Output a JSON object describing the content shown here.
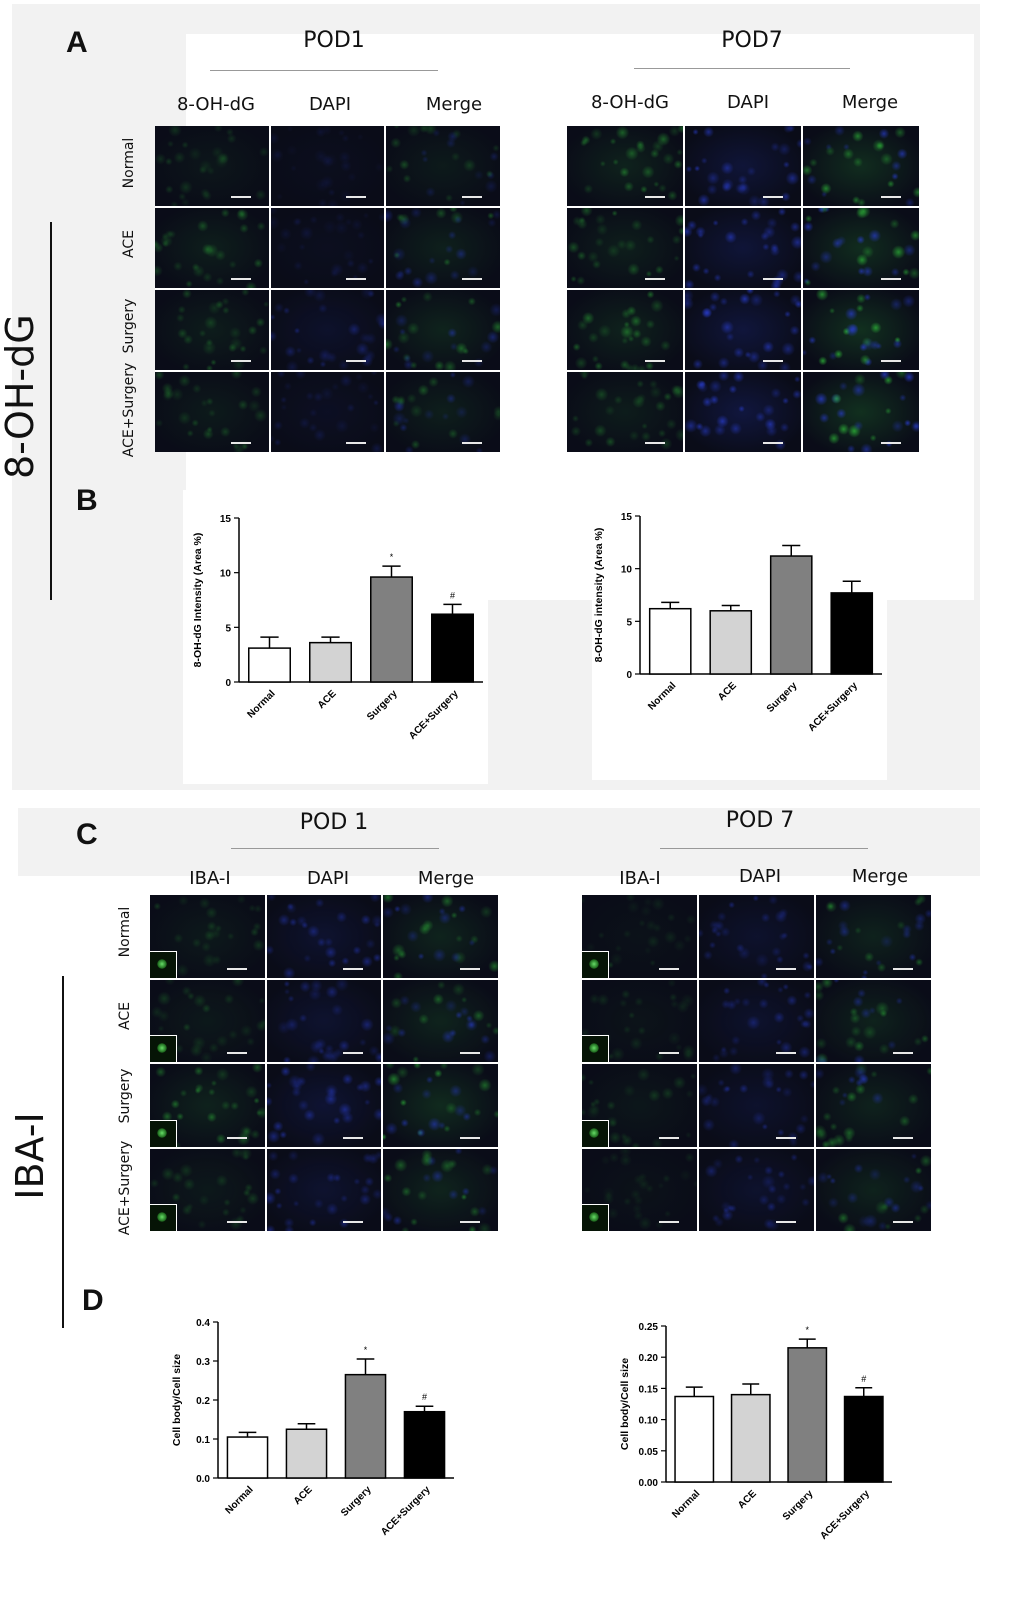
{
  "figure": {
    "section_a": {
      "letter": "A",
      "side_label": "8-OH-dG",
      "groups": [
        {
          "title": "POD1",
          "columns": [
            "8-OH-dG",
            "DAPI",
            "Merge"
          ],
          "rows": [
            "Normal",
            "ACE",
            "Surgery",
            "ACE+Surgery"
          ],
          "intensity": [
            [
              0.25,
              0.15,
              0.35
            ],
            [
              0.45,
              0.2,
              0.5
            ],
            [
              0.4,
              0.45,
              0.6
            ],
            [
              0.35,
              0.25,
              0.45
            ]
          ]
        },
        {
          "title": "POD7",
          "columns": [
            "8-OH-dG",
            "DAPI",
            "Merge"
          ],
          "rows": [
            "Normal",
            "ACE",
            "Surgery",
            "ACE+Surgery"
          ],
          "intensity": [
            [
              0.55,
              0.75,
              0.8
            ],
            [
              0.45,
              0.75,
              0.8
            ],
            [
              0.55,
              0.85,
              0.9
            ],
            [
              0.4,
              0.9,
              0.9
            ]
          ]
        }
      ]
    },
    "section_b": {
      "letter": "B"
    },
    "section_c": {
      "letter": "C",
      "side_label": "IBA-I",
      "groups": [
        {
          "title": "POD 1",
          "columns": [
            "IBA-I",
            "DAPI",
            "Merge"
          ],
          "rows": [
            "Normal",
            "ACE",
            "Surgery",
            "ACE+Surgery"
          ],
          "intensity": [
            [
              0.3,
              0.55,
              0.6
            ],
            [
              0.3,
              0.55,
              0.6
            ],
            [
              0.55,
              0.65,
              0.75
            ],
            [
              0.3,
              0.55,
              0.6
            ]
          ]
        },
        {
          "title": "POD 7",
          "columns": [
            "IBA-I",
            "DAPI",
            "Merge"
          ],
          "rows": [
            "",
            "",
            "",
            ""
          ],
          "intensity": [
            [
              0.15,
              0.5,
              0.55
            ],
            [
              0.2,
              0.5,
              0.55
            ],
            [
              0.25,
              0.5,
              0.55
            ],
            [
              0.15,
              0.5,
              0.55
            ]
          ]
        }
      ]
    },
    "section_d": {
      "letter": "D"
    },
    "colors": {
      "green": "#2fbf3a",
      "blue": "#2a3fd6",
      "background": "#0a0c18"
    }
  },
  "chart_data": [
    {
      "type": "bar",
      "ylabel": "8-OH-dG Intensity (Area %)",
      "categories": [
        "Normal",
        "ACE",
        "Surgery",
        "ACE+Surgery"
      ],
      "values": [
        3.1,
        3.6,
        9.6,
        6.2
      ],
      "errors": [
        1.0,
        0.5,
        1.0,
        0.9
      ],
      "annotations": [
        "",
        "",
        "*",
        "#"
      ],
      "ylim": [
        0,
        15
      ],
      "yticks": [
        "0",
        "5",
        "10",
        "15"
      ],
      "colors": [
        "#ffffff",
        "#d3d3d3",
        "#808080",
        "#000000"
      ]
    },
    {
      "type": "bar",
      "ylabel": "8-OH-dG intensity (Area %)",
      "categories": [
        "Normal",
        "ACE",
        "Surgery",
        "ACE+Surgery"
      ],
      "values": [
        6.2,
        6.0,
        11.2,
        7.7
      ],
      "errors": [
        0.6,
        0.5,
        1.0,
        1.1
      ],
      "annotations": [
        "",
        "",
        "",
        ""
      ],
      "ylim": [
        0,
        15
      ],
      "yticks": [
        "0",
        "5",
        "10",
        "15"
      ],
      "colors": [
        "#ffffff",
        "#d3d3d3",
        "#808080",
        "#000000"
      ]
    },
    {
      "type": "bar",
      "ylabel": "Cell body/Cell size",
      "categories": [
        "Normal",
        "ACE",
        "Surgery",
        "ACE+Surgery"
      ],
      "values": [
        0.105,
        0.125,
        0.265,
        0.17
      ],
      "errors": [
        0.012,
        0.014,
        0.04,
        0.014
      ],
      "annotations": [
        "",
        "",
        "*",
        "#"
      ],
      "ylim": [
        0,
        0.4
      ],
      "yticks": [
        "0.0",
        "0.1",
        "0.2",
        "0.3",
        "0.4"
      ],
      "colors": [
        "#ffffff",
        "#d3d3d3",
        "#808080",
        "#000000"
      ]
    },
    {
      "type": "bar",
      "ylabel": "Cell body/Cell size",
      "categories": [
        "Normal",
        "ACE",
        "Surgery",
        "ACE+Surgery"
      ],
      "values": [
        0.137,
        0.14,
        0.215,
        0.137
      ],
      "errors": [
        0.015,
        0.017,
        0.014,
        0.014
      ],
      "annotations": [
        "",
        "",
        "*",
        "#"
      ],
      "ylim": [
        0,
        0.25
      ],
      "yticks": [
        "0.00",
        "0.05",
        "0.10",
        "0.15",
        "0.20",
        "0.25"
      ],
      "colors": [
        "#ffffff",
        "#d3d3d3",
        "#808080",
        "#000000"
      ]
    }
  ]
}
